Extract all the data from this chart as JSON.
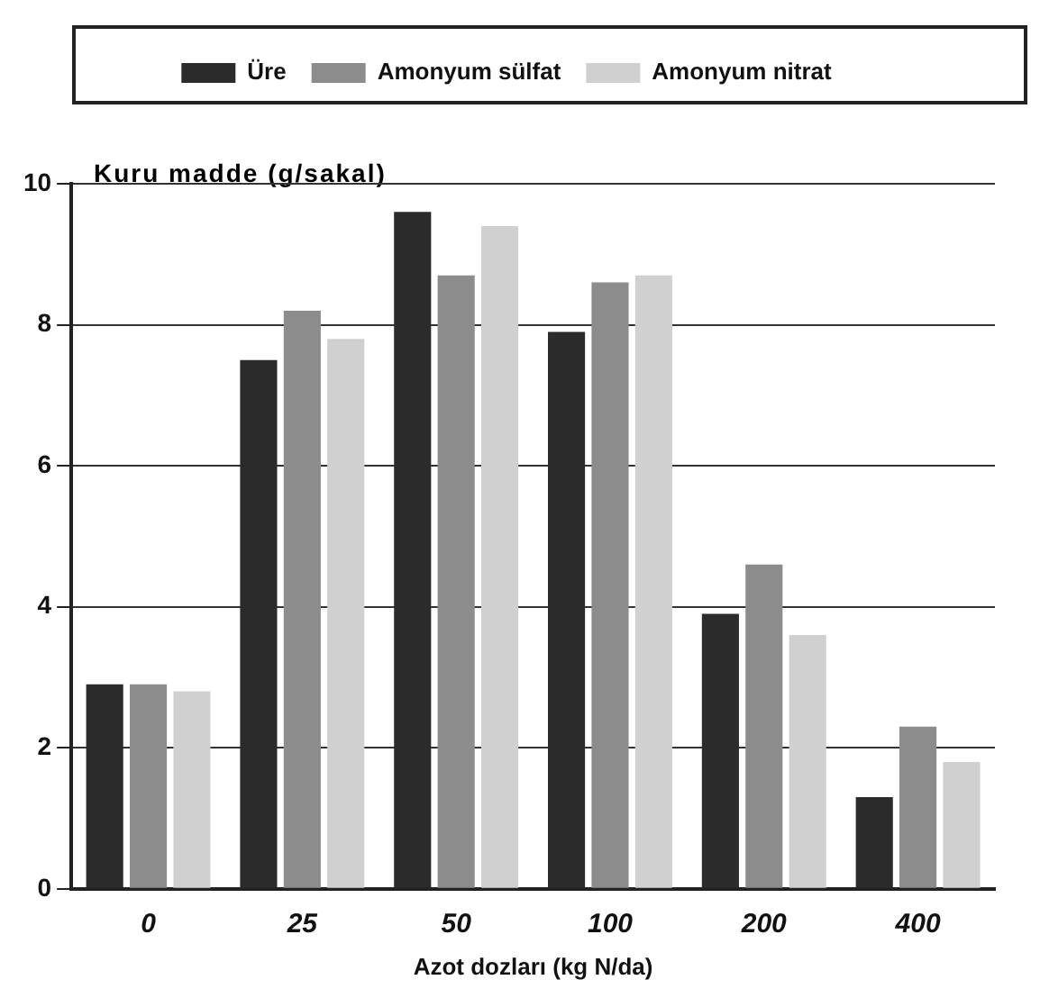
{
  "chart_data": {
    "type": "bar",
    "ylabel": "Kuru madde (g/sakal)",
    "xlabel": "Azot dozları (kg N/da)",
    "categories": [
      "0",
      "25",
      "50",
      "100",
      "200",
      "400"
    ],
    "series": [
      {
        "name": "Üre",
        "color": "#2b2b2b",
        "values": [
          2.9,
          7.5,
          9.6,
          7.9,
          3.9,
          1.3
        ]
      },
      {
        "name": "Amonyum sülfat",
        "color": "#8c8c8c",
        "values": [
          2.9,
          8.2,
          8.7,
          8.6,
          4.6,
          2.3
        ]
      },
      {
        "name": "Amonyum nitrat",
        "color": "#d0d0d0",
        "values": [
          2.8,
          7.8,
          9.4,
          8.7,
          3.6,
          1.8
        ]
      }
    ],
    "ylim": [
      0,
      10
    ],
    "yticks": [
      0,
      2,
      4,
      6,
      8,
      10
    ],
    "grid": "y",
    "legend": "top"
  }
}
